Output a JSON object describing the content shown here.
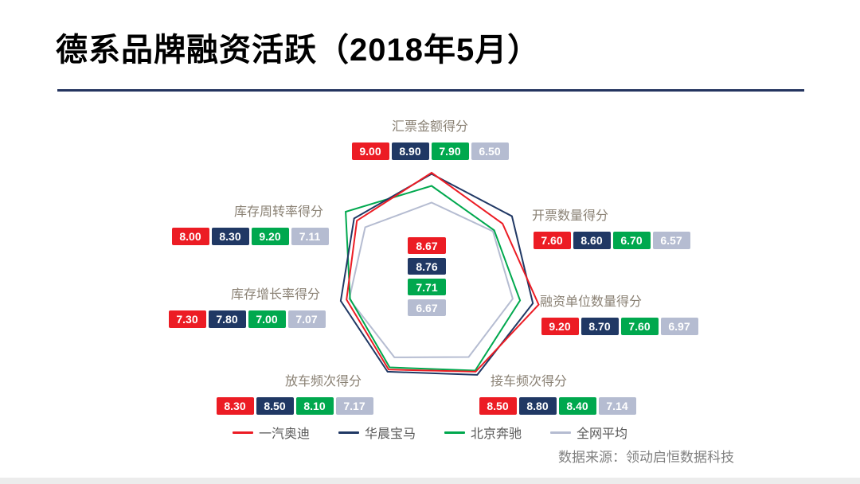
{
  "title": "德系品牌融资活跃（2018年5月）",
  "source": "数据来源：领动启恒数据科技",
  "chart_data": {
    "type": "radar",
    "title": "德系品牌融资活跃（2018年5月）",
    "categories": [
      "汇票金额得分",
      "开票数量得分",
      "融资单位数量得分",
      "接车频次得分",
      "放车频次得分",
      "库存增长率得分",
      "库存周转率得分"
    ],
    "rmax": 10,
    "grid": "off",
    "legend_position": "bottom",
    "series": [
      {
        "name": "一汽奥迪",
        "color": "#ec1c24",
        "values": [
          "9.00",
          "7.60",
          "9.20",
          "8.50",
          "8.30",
          "7.30",
          "8.00"
        ],
        "center_score": "8.67"
      },
      {
        "name": "华晨宝马",
        "color": "#203864",
        "values": [
          "8.90",
          "8.60",
          "8.70",
          "8.80",
          "8.50",
          "7.80",
          "8.30"
        ],
        "center_score": "8.76"
      },
      {
        "name": "北京奔驰",
        "color": "#00a84e",
        "values": [
          "7.90",
          "6.70",
          "7.60",
          "8.40",
          "8.10",
          "7.00",
          "9.20"
        ],
        "center_score": "7.71"
      },
      {
        "name": "全网平均",
        "color": "#b5bcd1",
        "values": [
          "6.50",
          "6.57",
          "6.97",
          "7.14",
          "7.17",
          "7.07",
          "7.11"
        ],
        "center_score": "6.67"
      }
    ]
  }
}
